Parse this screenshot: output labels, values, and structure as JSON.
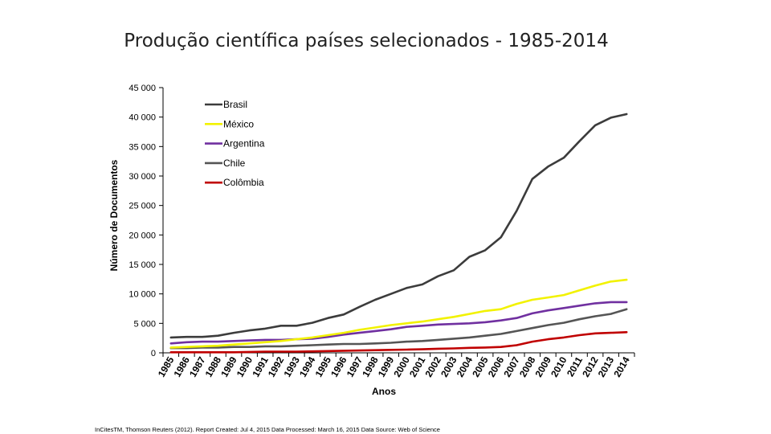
{
  "slide": {
    "title": "Produção científica países selecionados - 1985-2014",
    "source": "InCitesTM, Thomson Reuters (2012). Report Created: Jul 4, 2015 Data Processed: March 16, 2015 Data Source: Web of Science"
  },
  "chart_data": {
    "type": "line",
    "title": "Produção científica países selecionados - 1985-2014",
    "xlabel": "Anos",
    "ylabel": "Número de Documentos",
    "ylim": [
      0,
      45000
    ],
    "y_ticks": [
      0,
      5000,
      10000,
      15000,
      20000,
      25000,
      30000,
      35000,
      40000,
      45000
    ],
    "y_tick_labels": [
      "0",
      "5 000",
      "10 000",
      "15 000",
      "20 000",
      "25 000",
      "30 000",
      "35 000",
      "40 000",
      "45 000"
    ],
    "legend_position": "top-left",
    "categories": [
      "1985",
      "1986",
      "1987",
      "1988",
      "1989",
      "1990",
      "1991",
      "1992",
      "1993",
      "1994",
      "1995",
      "1996",
      "1997",
      "1998",
      "1999",
      "2000",
      "2001",
      "2002",
      "2003",
      "2004",
      "2005",
      "2006",
      "2007",
      "2008",
      "2009",
      "2010",
      "2011",
      "2012",
      "2013",
      "2014"
    ],
    "series": [
      {
        "name": "Brasil",
        "color": "#3c3c3c",
        "values": [
          2600,
          2700,
          2700,
          2900,
          3400,
          3800,
          4100,
          4600,
          4600,
          5100,
          5900,
          6500,
          7800,
          9000,
          10000,
          11000,
          11600,
          13000,
          14000,
          16300,
          17400,
          19600,
          24100,
          29500,
          31600,
          33100,
          35900,
          38600,
          39900,
          40500
        ]
      },
      {
        "name": "México",
        "color": "#f2f200",
        "values": [
          900,
          1000,
          1100,
          1200,
          1400,
          1600,
          1800,
          2000,
          2300,
          2600,
          3000,
          3400,
          3900,
          4300,
          4700,
          5000,
          5300,
          5700,
          6100,
          6600,
          7100,
          7400,
          8300,
          9000,
          9400,
          9800,
          10600,
          11400,
          12100,
          12400
        ]
      },
      {
        "name": "Argentina",
        "color": "#7030a0",
        "values": [
          1600,
          1800,
          1900,
          1900,
          2000,
          2100,
          2200,
          2200,
          2300,
          2400,
          2700,
          3100,
          3400,
          3700,
          4000,
          4400,
          4600,
          4800,
          4900,
          5000,
          5200,
          5500,
          5900,
          6700,
          7200,
          7600,
          8000,
          8400,
          8600,
          8600
        ]
      },
      {
        "name": "Chile",
        "color": "#555555",
        "values": [
          800,
          800,
          900,
          900,
          1000,
          1000,
          1100,
          1100,
          1200,
          1300,
          1400,
          1500,
          1500,
          1600,
          1700,
          1900,
          2000,
          2200,
          2400,
          2600,
          2900,
          3200,
          3700,
          4200,
          4700,
          5100,
          5700,
          6200,
          6600,
          7400
        ]
      },
      {
        "name": "Colômbia",
        "color": "#c00000",
        "values": [
          100,
          100,
          100,
          100,
          100,
          150,
          200,
          200,
          200,
          250,
          300,
          350,
          400,
          450,
          500,
          550,
          600,
          700,
          750,
          850,
          900,
          1000,
          1300,
          1900,
          2300,
          2600,
          3000,
          3300,
          3400,
          3500
        ]
      }
    ]
  }
}
